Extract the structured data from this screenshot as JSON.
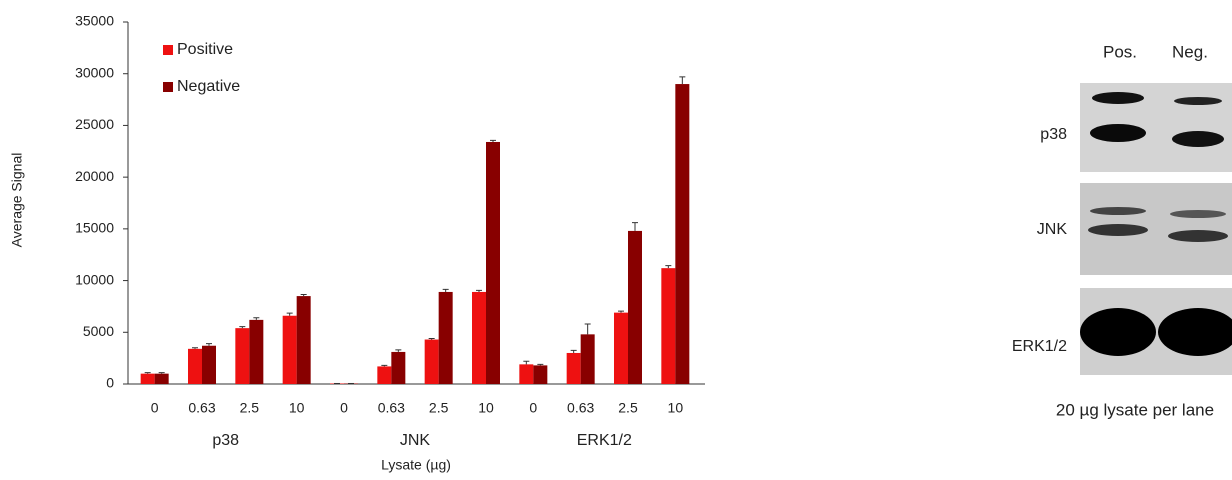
{
  "chart_data": {
    "type": "bar",
    "y_label": "Average Signal",
    "x_label": "Lysate (µg)",
    "categories": [
      "0",
      "0.63",
      "2.5",
      "10",
      "0",
      "0.63",
      "2.5",
      "10",
      "0",
      "0.63",
      "2.5",
      "10"
    ],
    "groups": [
      "p38",
      "JNK",
      "ERK1/2"
    ],
    "series": [
      {
        "name": "Positive",
        "color": "#ee1111",
        "values": [
          1000,
          3400,
          5400,
          6600,
          50,
          1700,
          4300,
          8900,
          1900,
          3000,
          6900,
          11200
        ],
        "errors": [
          100,
          100,
          150,
          250,
          0,
          100,
          100,
          150,
          300,
          250,
          150,
          250
        ]
      },
      {
        "name": "Negative",
        "color": "#880000",
        "values": [
          1000,
          3700,
          6200,
          8500,
          50,
          3100,
          8900,
          23400,
          1800,
          4800,
          14800,
          29000
        ],
        "errors": [
          100,
          200,
          200,
          150,
          0,
          200,
          250,
          150,
          100,
          1000,
          800,
          700
        ]
      }
    ],
    "ylim": [
      0,
      35000
    ],
    "yticks": [
      0,
      5000,
      10000,
      15000,
      20000,
      25000,
      30000,
      35000
    ],
    "grid": false,
    "legend": "top-left"
  },
  "blot": {
    "lanes": [
      "Pos.",
      "Neg."
    ],
    "rows": [
      "p38",
      "JNK",
      "ERK1/2"
    ],
    "caption": "20 µg lysate per lane"
  }
}
